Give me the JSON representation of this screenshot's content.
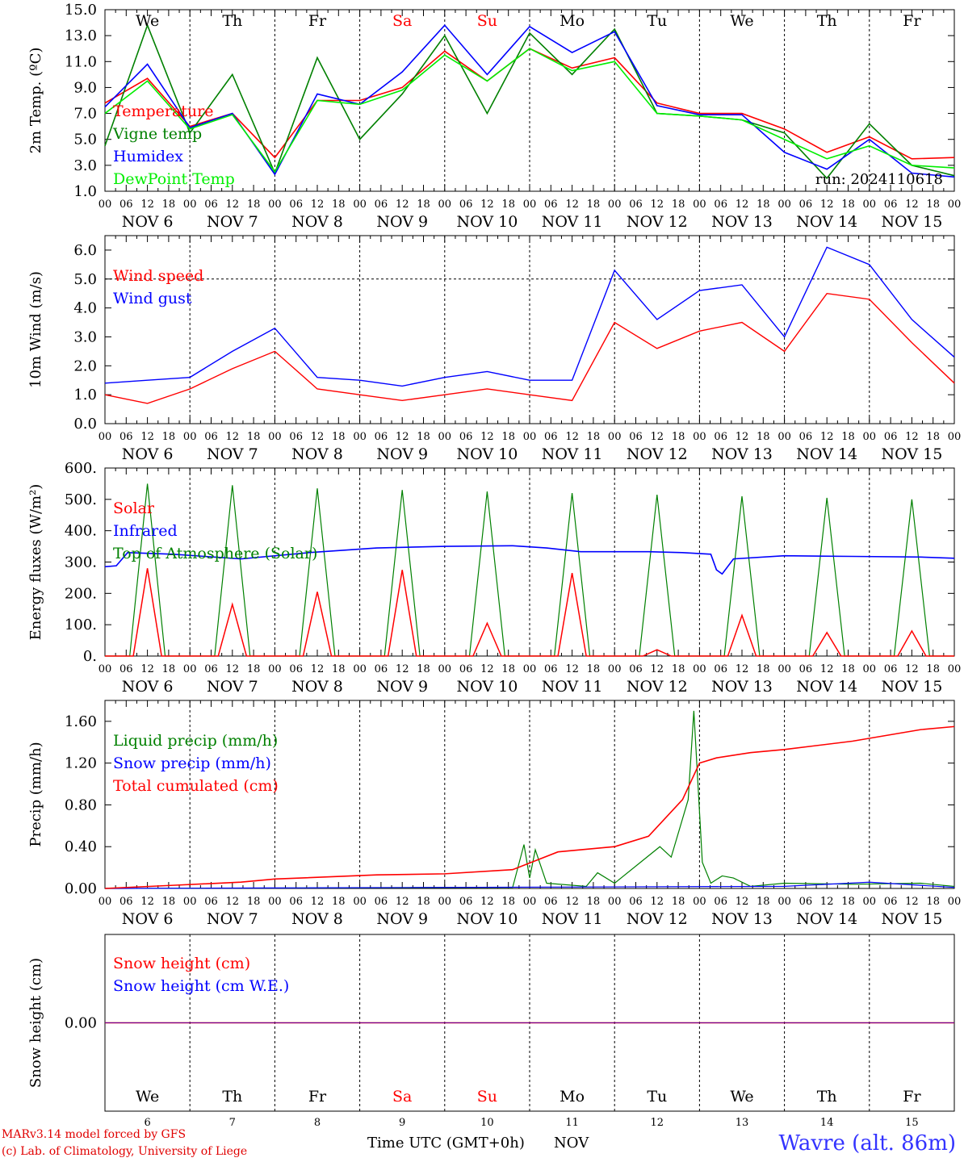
{
  "chart_data": [
    {
      "type": "line",
      "ylabel": "2m Temp. (ºC)",
      "ylim": [
        1.0,
        15.0
      ],
      "yticks": [
        "1.0",
        "3.0",
        "5.0",
        "7.0",
        "9.0",
        "11.0",
        "13.0",
        "15.0"
      ],
      "annotation": "run: 2024110618",
      "day_names": [
        "We",
        "Th",
        "Fr",
        "Sa",
        "Su",
        "Mo",
        "Tu",
        "We",
        "Th",
        "Fr"
      ],
      "day_name_colors": [
        "#000000",
        "#000000",
        "#000000",
        "#ff0000",
        "#ff0000",
        "#000000",
        "#000000",
        "#000000",
        "#000000",
        "#000000"
      ],
      "x_hour_ticks": [
        "00",
        "06",
        "12",
        "18"
      ],
      "date_labels": [
        "NOV  6",
        "NOV  7",
        "NOV  8",
        "NOV  9",
        "NOV 10",
        "NOV 11",
        "NOV 12",
        "NOV 13",
        "NOV 14",
        "NOV 15"
      ],
      "x_hours": [
        0,
        12,
        24,
        36,
        48,
        60,
        72,
        84,
        96,
        108,
        120,
        132,
        144,
        156,
        168,
        180,
        192,
        204,
        216,
        228,
        240
      ],
      "series": [
        {
          "name": "Temperature",
          "color": "#ff0000",
          "values": [
            7.8,
            9.7,
            6.0,
            7.0,
            3.6,
            8.0,
            8.0,
            9.0,
            11.8,
            9.5,
            12.0,
            10.5,
            11.3,
            7.8,
            7.0,
            7.0,
            5.8,
            4.0,
            5.2,
            3.5,
            3.6
          ]
        },
        {
          "name": "Vigne temp",
          "color": "#008000",
          "values": [
            4.5,
            13.8,
            5.5,
            10.0,
            2.4,
            11.3,
            5.0,
            8.5,
            13.0,
            7.0,
            13.2,
            10.0,
            13.5,
            7.0,
            6.8,
            6.5,
            5.5,
            2.0,
            6.2,
            3.0,
            2.2
          ]
        },
        {
          "name": "Humidex",
          "color": "#0000ff",
          "values": [
            7.5,
            10.8,
            5.9,
            7.0,
            2.3,
            8.5,
            7.7,
            10.2,
            13.8,
            10.0,
            13.7,
            11.7,
            13.3,
            7.6,
            6.9,
            6.9,
            4.0,
            2.7,
            5.0,
            2.4,
            2.1
          ]
        },
        {
          "name": "DewPoint Temp",
          "color": "#00ee00",
          "values": [
            7.0,
            9.5,
            5.8,
            6.9,
            2.5,
            8.0,
            7.7,
            8.8,
            11.5,
            9.5,
            12.0,
            10.3,
            11.0,
            7.0,
            6.8,
            6.5,
            5.0,
            3.5,
            4.5,
            3.0,
            2.8
          ]
        }
      ]
    },
    {
      "type": "line",
      "ylabel": "10m Wind (m/s)",
      "ylim": [
        0.0,
        6.5
      ],
      "yticks": [
        "0.0",
        "1.0",
        "2.0",
        "3.0",
        "4.0",
        "5.0",
        "6.0"
      ],
      "ref_line": 5.0,
      "x_hour_ticks": [
        "00",
        "06",
        "12",
        "18"
      ],
      "date_labels": [
        "NOV  6",
        "NOV  7",
        "NOV  8",
        "NOV  9",
        "NOV 10",
        "NOV 11",
        "NOV 12",
        "NOV 13",
        "NOV 14",
        "NOV 15"
      ],
      "x_hours": [
        0,
        12,
        24,
        36,
        48,
        60,
        72,
        84,
        96,
        108,
        120,
        132,
        144,
        156,
        168,
        180,
        192,
        204,
        216,
        228,
        240
      ],
      "series": [
        {
          "name": "Wind speed",
          "color": "#ff0000",
          "values": [
            1.0,
            0.7,
            1.2,
            1.9,
            2.5,
            1.2,
            1.0,
            0.8,
            1.0,
            1.2,
            1.0,
            0.8,
            3.5,
            2.6,
            3.2,
            3.5,
            2.5,
            4.5,
            4.3,
            2.8,
            1.4
          ]
        },
        {
          "name": "Wind gust",
          "color": "#0000ff",
          "values": [
            1.4,
            1.5,
            1.6,
            2.5,
            3.3,
            1.6,
            1.5,
            1.3,
            1.6,
            1.8,
            1.5,
            1.5,
            5.3,
            3.6,
            4.6,
            4.8,
            3.0,
            6.1,
            5.5,
            3.6,
            2.3
          ]
        }
      ]
    },
    {
      "type": "line",
      "ylabel": "Energy fluxes (W/m²)",
      "ylim": [
        0,
        600
      ],
      "yticks": [
        "0.",
        "100.",
        "200.",
        "300.",
        "400.",
        "500.",
        "600."
      ],
      "x_hour_ticks": [
        "00",
        "06",
        "12",
        "18"
      ],
      "date_labels": [
        "NOV  6",
        "NOV  7",
        "NOV  8",
        "NOV  9",
        "NOV 10",
        "NOV 11",
        "NOV 12",
        "NOV 13",
        "NOV 14",
        "NOV 15"
      ],
      "solar_peaks": [
        280,
        165,
        205,
        275,
        105,
        265,
        20,
        130,
        75,
        80
      ],
      "toa_peaks": [
        550,
        545,
        535,
        530,
        525,
        520,
        515,
        510,
        505,
        500
      ],
      "infrared": [
        {
          "h": 0,
          "v": 285
        },
        {
          "h": 4,
          "v": 288
        },
        {
          "h": 8,
          "v": 330
        },
        {
          "h": 24,
          "v": 325
        },
        {
          "h": 48,
          "v": 310
        },
        {
          "h": 72,
          "v": 330
        },
        {
          "h": 96,
          "v": 345
        },
        {
          "h": 120,
          "v": 350
        },
        {
          "h": 144,
          "v": 352
        },
        {
          "h": 156,
          "v": 345
        },
        {
          "h": 168,
          "v": 333
        },
        {
          "h": 192,
          "v": 333
        },
        {
          "h": 204,
          "v": 330
        },
        {
          "h": 214,
          "v": 325
        },
        {
          "h": 216,
          "v": 275
        },
        {
          "h": 218,
          "v": 262
        },
        {
          "h": 222,
          "v": 310
        },
        {
          "h": 240,
          "v": 320
        },
        {
          "h": 264,
          "v": 318
        },
        {
          "h": 288,
          "v": 316
        },
        {
          "h": 300,
          "v": 312
        }
      ],
      "series": [
        {
          "name": "Solar",
          "color": "#ff0000"
        },
        {
          "name": "Infrared",
          "color": "#0000ff"
        },
        {
          "name": "Top of Atmosphere (Solar)",
          "color": "#008000"
        }
      ]
    },
    {
      "type": "line",
      "ylabel": "Precip (mm/h)",
      "ylim": [
        0.0,
        1.8
      ],
      "yticks": [
        "0.00",
        "0.40",
        "0.80",
        "1.20",
        "1.60"
      ],
      "x_hour_ticks": [
        "00",
        "06",
        "12",
        "18"
      ],
      "date_labels": [
        "NOV  6",
        "NOV  7",
        "NOV  8",
        "NOV  9",
        "NOV 10",
        "NOV 11",
        "NOV 12",
        "NOV 13",
        "NOV 14",
        "NOV 15"
      ],
      "liquid": [
        {
          "h": 0,
          "v": 0
        },
        {
          "h": 144,
          "v": 0.01
        },
        {
          "h": 148,
          "v": 0.42
        },
        {
          "h": 150,
          "v": 0.1
        },
        {
          "h": 152,
          "v": 0.37
        },
        {
          "h": 156,
          "v": 0.05
        },
        {
          "h": 170,
          "v": 0.02
        },
        {
          "h": 174,
          "v": 0.15
        },
        {
          "h": 180,
          "v": 0.05
        },
        {
          "h": 196,
          "v": 0.4
        },
        {
          "h": 200,
          "v": 0.3
        },
        {
          "h": 206,
          "v": 0.85
        },
        {
          "h": 208,
          "v": 1.7
        },
        {
          "h": 211,
          "v": 0.25
        },
        {
          "h": 214,
          "v": 0.05
        },
        {
          "h": 218,
          "v": 0.12
        },
        {
          "h": 222,
          "v": 0.1
        },
        {
          "h": 228,
          "v": 0.02
        },
        {
          "h": 240,
          "v": 0.05
        },
        {
          "h": 264,
          "v": 0.04
        },
        {
          "h": 288,
          "v": 0.05
        },
        {
          "h": 300,
          "v": 0.02
        }
      ],
      "snow": [
        {
          "h": 0,
          "v": 0
        },
        {
          "h": 240,
          "v": 0.02
        },
        {
          "h": 270,
          "v": 0.06
        },
        {
          "h": 300,
          "v": 0.01
        }
      ],
      "total": [
        {
          "h": 0,
          "v": 0
        },
        {
          "h": 24,
          "v": 0.03
        },
        {
          "h": 48,
          "v": 0.06
        },
        {
          "h": 60,
          "v": 0.09
        },
        {
          "h": 96,
          "v": 0.13
        },
        {
          "h": 120,
          "v": 0.14
        },
        {
          "h": 144,
          "v": 0.18
        },
        {
          "h": 160,
          "v": 0.35
        },
        {
          "h": 180,
          "v": 0.4
        },
        {
          "h": 192,
          "v": 0.5
        },
        {
          "h": 204,
          "v": 0.85
        },
        {
          "h": 210,
          "v": 1.2
        },
        {
          "h": 216,
          "v": 1.25
        },
        {
          "h": 228,
          "v": 1.3
        },
        {
          "h": 240,
          "v": 1.33
        },
        {
          "h": 264,
          "v": 1.41
        },
        {
          "h": 288,
          "v": 1.52
        },
        {
          "h": 300,
          "v": 1.55
        }
      ],
      "series": [
        {
          "name": "Liquid precip (mm/h)",
          "color": "#008000"
        },
        {
          "name": "Snow precip (mm/h)",
          "color": "#0000ff"
        },
        {
          "name": "Total cumulated (cm)",
          "color": "#ff0000"
        }
      ]
    },
    {
      "type": "line",
      "ylabel": "Snow height (cm)",
      "ylim": [
        -1,
        1
      ],
      "yticks": [
        "0.00"
      ],
      "day_names": [
        "We",
        "Th",
        "Fr",
        "Sa",
        "Su",
        "Mo",
        "Tu",
        "We",
        "Th",
        "Fr"
      ],
      "day_name_colors": [
        "#000000",
        "#000000",
        "#000000",
        "#ff0000",
        "#ff0000",
        "#000000",
        "#000000",
        "#000000",
        "#000000",
        "#000000"
      ],
      "day_numbers": [
        "6",
        "7",
        "8",
        "9",
        "10",
        "11",
        "12",
        "13",
        "14",
        "15"
      ],
      "month_label": "NOV",
      "series": [
        {
          "name": "Snow height (cm)",
          "color": "#ff0000",
          "values": [
            0,
            0
          ]
        },
        {
          "name": "Snow height (cm W.E.)",
          "color": "#0000ff",
          "values": [
            0,
            0
          ]
        }
      ]
    }
  ],
  "footer": {
    "credit_line1": "MARv3.14 model forced by GFS",
    "credit_line2": "(c) Lab. of Climatology, University of Liege",
    "xaxis_title": "Time UTC (GMT+0h)",
    "month": "NOV",
    "station": "Wavre (alt. 86m)"
  }
}
